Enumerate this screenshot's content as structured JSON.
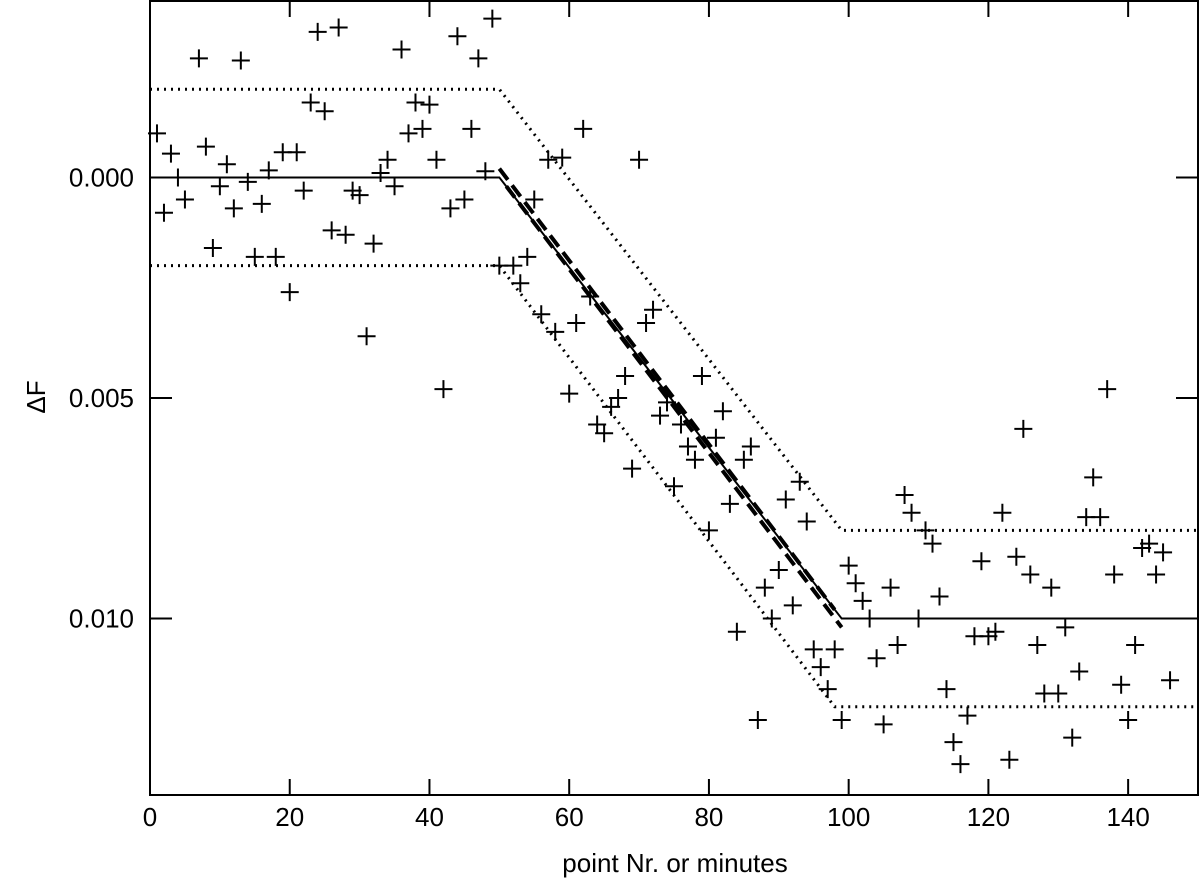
{
  "chart_data": {
    "type": "scatter",
    "xlabel": "point Nr. or  minutes",
    "ylabel": "ΔF",
    "xlim": [
      0,
      150
    ],
    "ylim": [
      -0.004,
      0.014
    ],
    "y_inverted": true,
    "xticks": [
      0,
      20,
      40,
      60,
      80,
      100,
      120,
      140
    ],
    "yticks": [
      {
        "value": 0,
        "label": "0.000"
      },
      {
        "value": 0.005,
        "label": "0.005"
      },
      {
        "value": 0.01,
        "label": "0.010"
      }
    ],
    "color": "#000000",
    "x": [
      1,
      2,
      3,
      4,
      5,
      7,
      8,
      9,
      10,
      11,
      12,
      13,
      14,
      15,
      16,
      17,
      18,
      19,
      20,
      21,
      22,
      23,
      24,
      25,
      26,
      27,
      28,
      29,
      30,
      31,
      32,
      33,
      34,
      35,
      36,
      37,
      38,
      39,
      40,
      41,
      42,
      43,
      44,
      45,
      46,
      47,
      48,
      49,
      50,
      52,
      53,
      54,
      55,
      56,
      57,
      58,
      59,
      60,
      61,
      62,
      63,
      64,
      65,
      66,
      67,
      68,
      69,
      70,
      71,
      72,
      73,
      74,
      75,
      76,
      77,
      78,
      79,
      80,
      81,
      82,
      83,
      84,
      85,
      86,
      87,
      88,
      89,
      90,
      91,
      92,
      93,
      94,
      95,
      96,
      97,
      98,
      99,
      100,
      101,
      102,
      103,
      104,
      105,
      106,
      107,
      108,
      109,
      110,
      111,
      112,
      113,
      114,
      115,
      116,
      117,
      118,
      119,
      120,
      121,
      122,
      123,
      124,
      125,
      126,
      127,
      128,
      129,
      130,
      131,
      132,
      133,
      134,
      135,
      136,
      137,
      138,
      139,
      140,
      141,
      142,
      143,
      144,
      145,
      146
    ],
    "values": [
      -0.001,
      0.0008,
      -0.00054,
      0,
      0.0005,
      -0.0027,
      -0.0007,
      0.0016,
      0.0002,
      -0.0003,
      0.0007,
      -0.00265,
      0.0001,
      0.0018,
      0.0006,
      -0.00016,
      0.0018,
      -0.00057,
      0.0026,
      -0.00057,
      0.0003,
      -0.0017,
      -0.0033,
      -0.0015,
      0.0012,
      -0.0034,
      0.0013,
      0.0003,
      0.0004,
      0.0036,
      0.0015,
      -0.0001,
      -0.0004,
      0.0002,
      -0.0029,
      -0.001,
      -0.0017,
      -0.0011,
      -0.00165,
      -0.0004,
      0.0048,
      0.0007,
      -0.0032,
      0.0005,
      -0.0011,
      -0.0027,
      -0.00014,
      -0.0036,
      0.002,
      0.002,
      0.0024,
      0.0018,
      0.0005,
      0.0031,
      -0.0004,
      0.0035,
      -0.00045,
      0.0049,
      0.0033,
      -0.0011,
      0.0027,
      0.0056,
      0.0058,
      0.0052,
      0.005,
      0.0045,
      0.0066,
      -0.0004,
      0.0033,
      0.003,
      0.0054,
      0.0051,
      0.007,
      0.0056,
      0.0061,
      0.0064,
      0.0045,
      0.008,
      0.0059,
      0.0053,
      0.0074,
      0.0103,
      0.0064,
      0.0061,
      0.0123,
      0.0093,
      0.01,
      0.0089,
      0.0073,
      0.0097,
      0.0069,
      0.0078,
      0.0107,
      0.0111,
      0.0116,
      0.0107,
      0.0123,
      0.0088,
      0.0092,
      0.0096,
      0.01,
      0.0109,
      0.0124,
      0.0093,
      0.0106,
      0.0072,
      0.0076,
      0.01,
      0.008,
      0.0083,
      0.0095,
      0.0116,
      0.0128,
      0.0133,
      0.0122,
      0.0104,
      0.0087,
      0.0104,
      0.0103,
      0.0076,
      0.0132,
      0.0086,
      0.0057,
      0.009,
      0.0106,
      0.0117,
      0.0093,
      0.0117,
      0.0102,
      0.0127,
      0.0112,
      0.0077,
      0.0068,
      0.0077,
      0.0048,
      0.009,
      0.0115,
      0.0123,
      0.0106,
      0.0084,
      0.0083,
      0.009,
      0.0085,
      0.0114
    ],
    "lines": [
      {
        "style": "solid",
        "x": [
          0,
          50,
          99,
          150
        ],
        "y": [
          0,
          0,
          0.01,
          0.01
        ]
      },
      {
        "style": "dotted",
        "x": [
          0,
          50,
          99,
          150
        ],
        "y": [
          -0.002,
          -0.002,
          0.008,
          0.008
        ]
      },
      {
        "style": "dotted",
        "x": [
          0,
          50,
          98,
          150
        ],
        "y": [
          0.002,
          0.002,
          0.012,
          0.012
        ]
      },
      {
        "style": "dashed",
        "x": [
          50,
          98
        ],
        "y": [
          -0.0002,
          0.0098
        ]
      },
      {
        "style": "dashed",
        "x": [
          51,
          99
        ],
        "y": [
          0.0002,
          0.0102
        ]
      }
    ]
  }
}
